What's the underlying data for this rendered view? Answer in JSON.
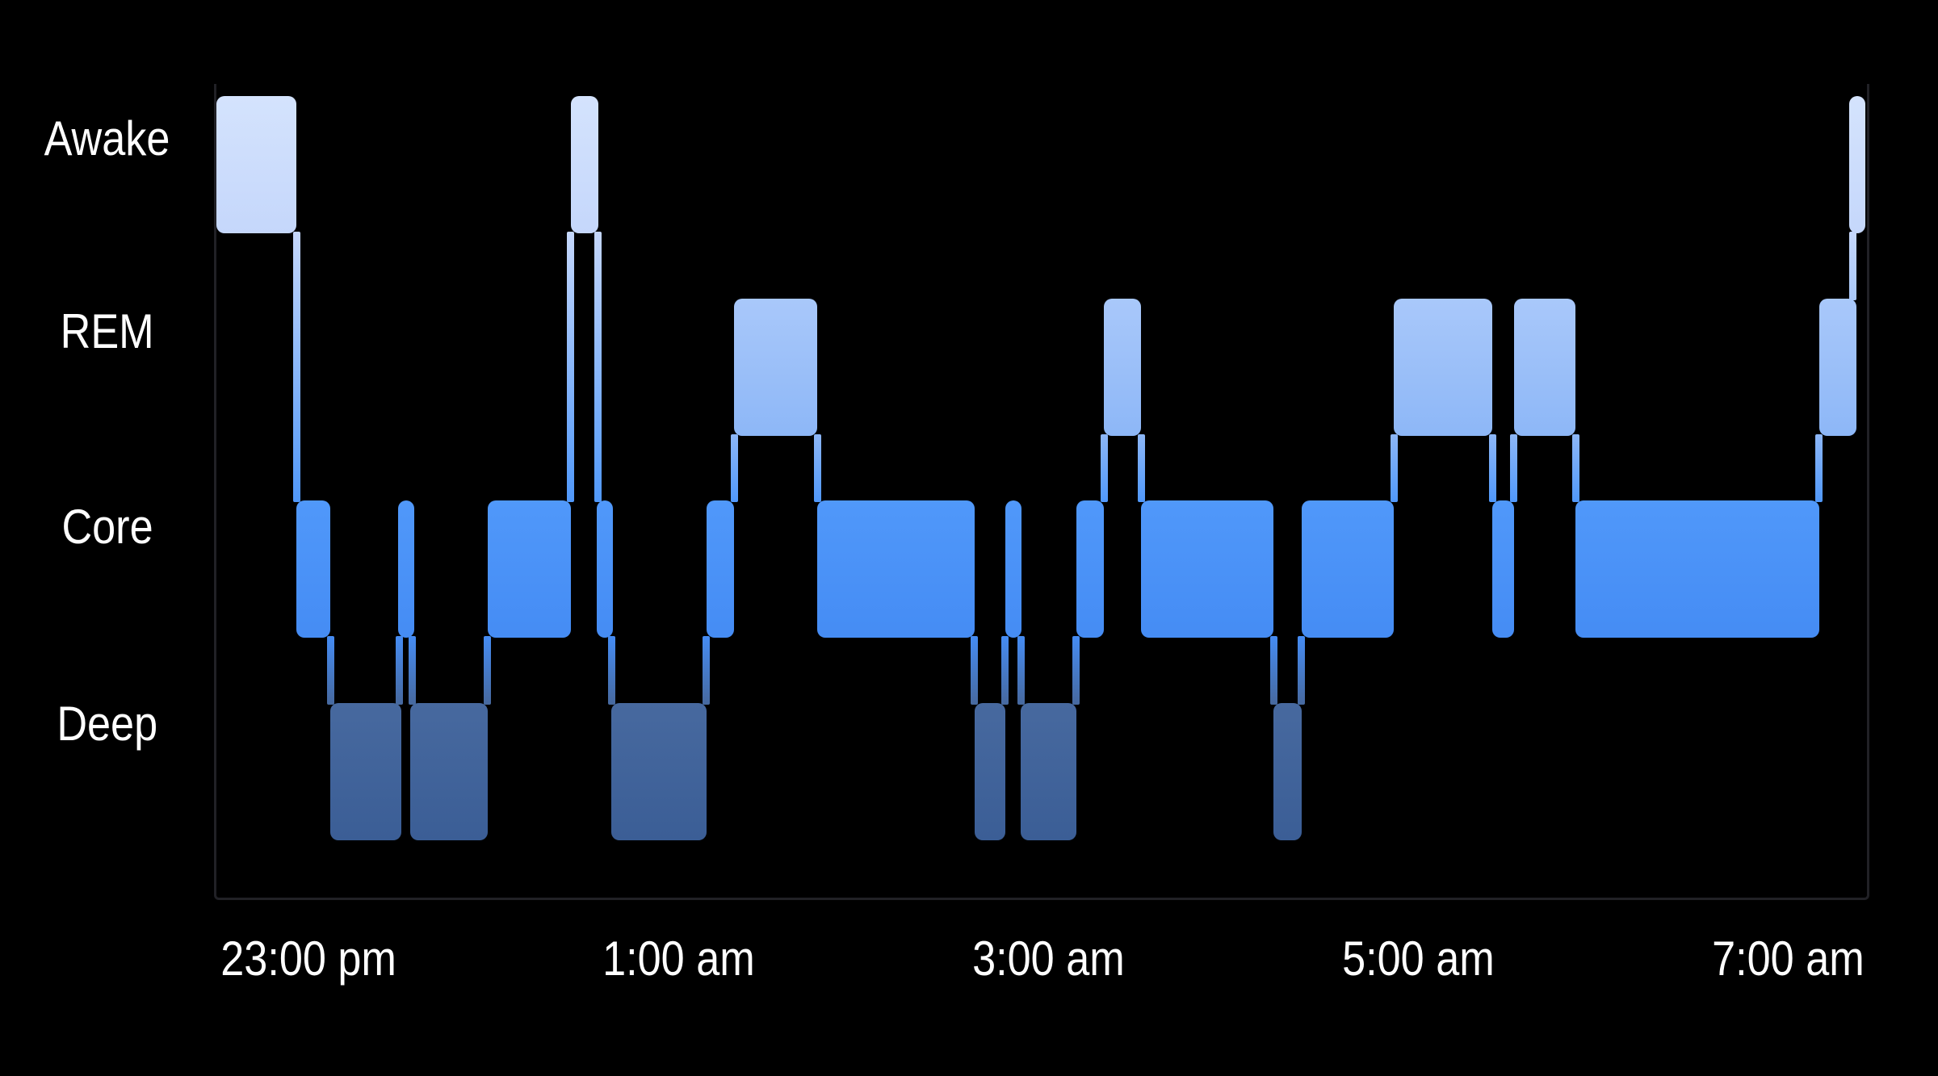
{
  "colors": {
    "background": "#000000",
    "label_text": "#ffffff",
    "plot_border": "#212126",
    "stages": {
      "Awake": {
        "top": "#d4e3fd",
        "bottom": "#c5d7fb",
        "base": "#cfe0fc"
      },
      "REM": {
        "top": "#a9c8fa",
        "bottom": "#8db7f7",
        "base": "#9bc0f8"
      },
      "Core": {
        "top": "#5098fa",
        "bottom": "#458cf4",
        "base": "#4a92f7"
      },
      "Deep": {
        "top": "#47699f",
        "bottom": "#3b5e96",
        "base": "#3f639b"
      }
    }
  },
  "chart_data": {
    "type": "bar",
    "subtype": "sleep-stage-hypnogram",
    "title": "",
    "stages": [
      "Awake",
      "REM",
      "Core",
      "Deep"
    ],
    "legend": "none",
    "grid": "off",
    "time_range": {
      "start": "22:30",
      "end": "07:25",
      "total_minutes": 535
    },
    "ticks": [
      {
        "label": "23:00 pm",
        "minutes": 30
      },
      {
        "label": "1:00 am",
        "minutes": 150
      },
      {
        "label": "3:00 am",
        "minutes": 270
      },
      {
        "label": "5:00 am",
        "minutes": 390
      },
      {
        "label": "7:00 am",
        "minutes": 510
      }
    ],
    "segments": [
      {
        "stage": "Awake",
        "start": "22:30",
        "end": "22:56",
        "start_min": 0,
        "end_min": 26
      },
      {
        "stage": "Core",
        "start": "22:56",
        "end": "23:07",
        "start_min": 26,
        "end_min": 37
      },
      {
        "stage": "Deep",
        "start": "23:07",
        "end": "23:30",
        "start_min": 37,
        "end_min": 60
      },
      {
        "stage": "Core",
        "start": "23:30",
        "end": "23:33",
        "start_min": 60,
        "end_min": 63
      },
      {
        "stage": "Deep",
        "start": "23:33",
        "end": "23:58",
        "start_min": 63,
        "end_min": 88
      },
      {
        "stage": "Core",
        "start": "23:58",
        "end": "00:25",
        "start_min": 88,
        "end_min": 115
      },
      {
        "stage": "Awake",
        "start": "00:25",
        "end": "00:34",
        "start_min": 115,
        "end_min": 124
      },
      {
        "stage": "Core",
        "start": "00:34",
        "end": "00:38",
        "start_min": 124,
        "end_min": 128
      },
      {
        "stage": "Deep",
        "start": "00:38",
        "end": "01:09",
        "start_min": 128,
        "end_min": 159
      },
      {
        "stage": "Core",
        "start": "01:09",
        "end": "01:18",
        "start_min": 159,
        "end_min": 168
      },
      {
        "stage": "REM",
        "start": "01:18",
        "end": "01:45",
        "start_min": 168,
        "end_min": 195
      },
      {
        "stage": "Core",
        "start": "01:45",
        "end": "02:36",
        "start_min": 195,
        "end_min": 246
      },
      {
        "stage": "Deep",
        "start": "02:36",
        "end": "02:46",
        "start_min": 246,
        "end_min": 256
      },
      {
        "stage": "Core",
        "start": "02:46",
        "end": "02:51",
        "start_min": 256,
        "end_min": 261
      },
      {
        "stage": "Deep",
        "start": "02:51",
        "end": "03:09",
        "start_min": 261,
        "end_min": 279
      },
      {
        "stage": "Core",
        "start": "03:09",
        "end": "03:18",
        "start_min": 279,
        "end_min": 288
      },
      {
        "stage": "REM",
        "start": "03:18",
        "end": "03:30",
        "start_min": 288,
        "end_min": 300
      },
      {
        "stage": "Core",
        "start": "03:30",
        "end": "04:13",
        "start_min": 300,
        "end_min": 343
      },
      {
        "stage": "Deep",
        "start": "04:13",
        "end": "04:22",
        "start_min": 343,
        "end_min": 352
      },
      {
        "stage": "Core",
        "start": "04:22",
        "end": "04:52",
        "start_min": 352,
        "end_min": 382
      },
      {
        "stage": "REM",
        "start": "04:52",
        "end": "05:24",
        "start_min": 382,
        "end_min": 414
      },
      {
        "stage": "Core",
        "start": "05:24",
        "end": "05:31",
        "start_min": 414,
        "end_min": 421
      },
      {
        "stage": "REM",
        "start": "05:31",
        "end": "05:51",
        "start_min": 421,
        "end_min": 441
      },
      {
        "stage": "Core",
        "start": "05:51",
        "end": "07:10",
        "start_min": 441,
        "end_min": 520
      },
      {
        "stage": "REM",
        "start": "07:10",
        "end": "07:22",
        "start_min": 520,
        "end_min": 532
      },
      {
        "stage": "Awake",
        "start": "07:22",
        "end": "07:25",
        "start_min": 532,
        "end_min": 535
      }
    ]
  }
}
